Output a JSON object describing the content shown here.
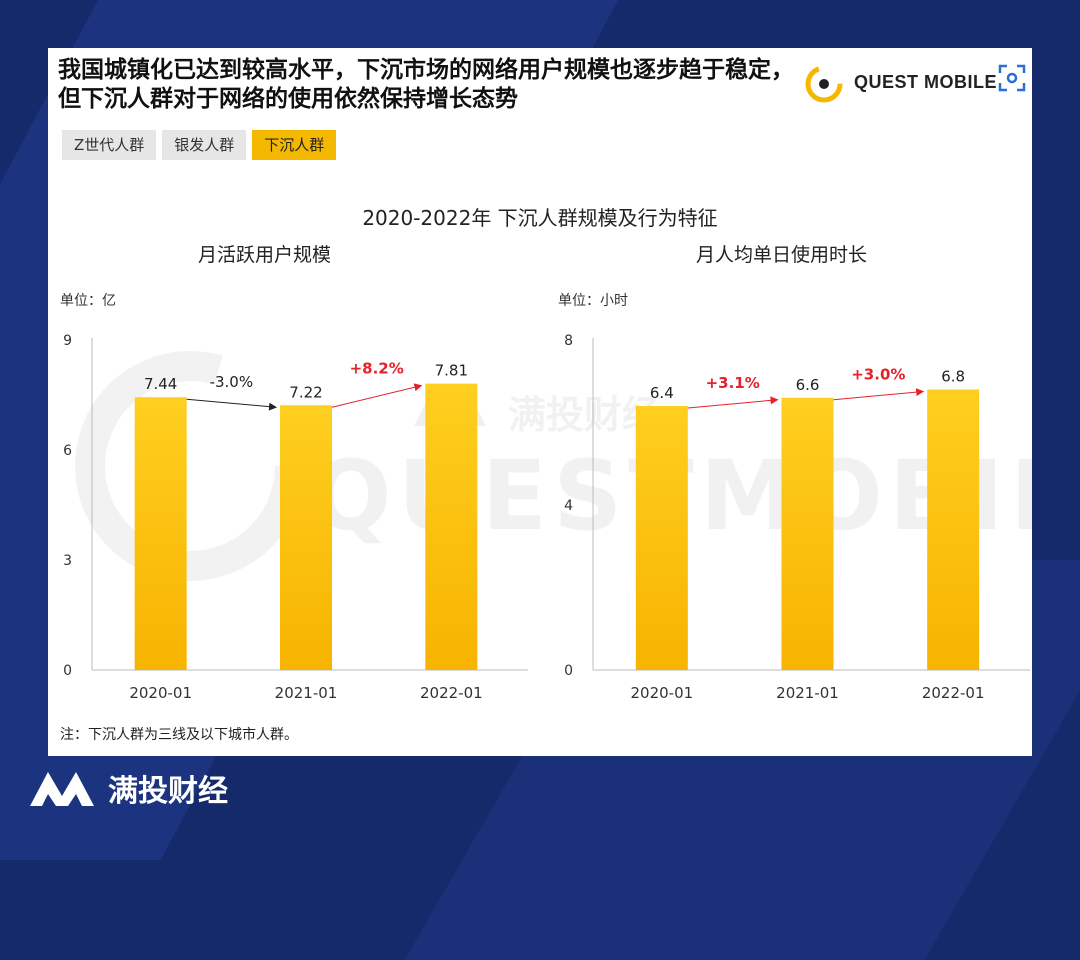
{
  "headline": "我国城镇化已达到较高水平，下沉市场的网络用户规模也逐步趋于稳定，但下沉人群对于网络的使用依然保持增长态势",
  "brand": {
    "logo_text": "QUEST MOBILE",
    "footer_name": "满投财经",
    "watermark_name": "满投财经",
    "watermark_brand": "QUESTMOBILE"
  },
  "tabs": [
    {
      "label": "Z世代人群",
      "active": false
    },
    {
      "label": "银发人群",
      "active": false
    },
    {
      "label": "下沉人群",
      "active": true
    }
  ],
  "chart_title": "2020-2022年 下沉人群规模及行为特征",
  "note": "注：下沉人群为三线及以下城市人群。",
  "colors": {
    "bar": "#f7b800",
    "bar_top": "#ffd23f",
    "growth": "#e8202a",
    "decline": "#222222",
    "tab_active": "#f5b800"
  },
  "chart_data": [
    {
      "type": "bar",
      "subtitle": "月活跃用户规模",
      "unit_label": "单位：亿",
      "categories": [
        "2020-01",
        "2021-01",
        "2022-01"
      ],
      "values": [
        7.44,
        7.22,
        7.81
      ],
      "value_labels": [
        "7.44",
        "7.22",
        "7.81"
      ],
      "yticks": [
        0,
        3,
        6,
        9
      ],
      "ylim": [
        0,
        9
      ],
      "changes": [
        {
          "label": "-3.0%",
          "direction": "down"
        },
        {
          "label": "+8.2%",
          "direction": "up"
        }
      ],
      "grid": false
    },
    {
      "type": "bar",
      "subtitle": "月人均单日使用时长",
      "unit_label": "单位：小时",
      "categories": [
        "2020-01",
        "2021-01",
        "2022-01"
      ],
      "values": [
        6.4,
        6.6,
        6.8
      ],
      "value_labels": [
        "6.4",
        "6.6",
        "6.8"
      ],
      "yticks": [
        0,
        4,
        8
      ],
      "ylim": [
        0,
        8
      ],
      "changes": [
        {
          "label": "+3.1%",
          "direction": "up"
        },
        {
          "label": "+3.0%",
          "direction": "up"
        }
      ],
      "grid": false
    }
  ]
}
